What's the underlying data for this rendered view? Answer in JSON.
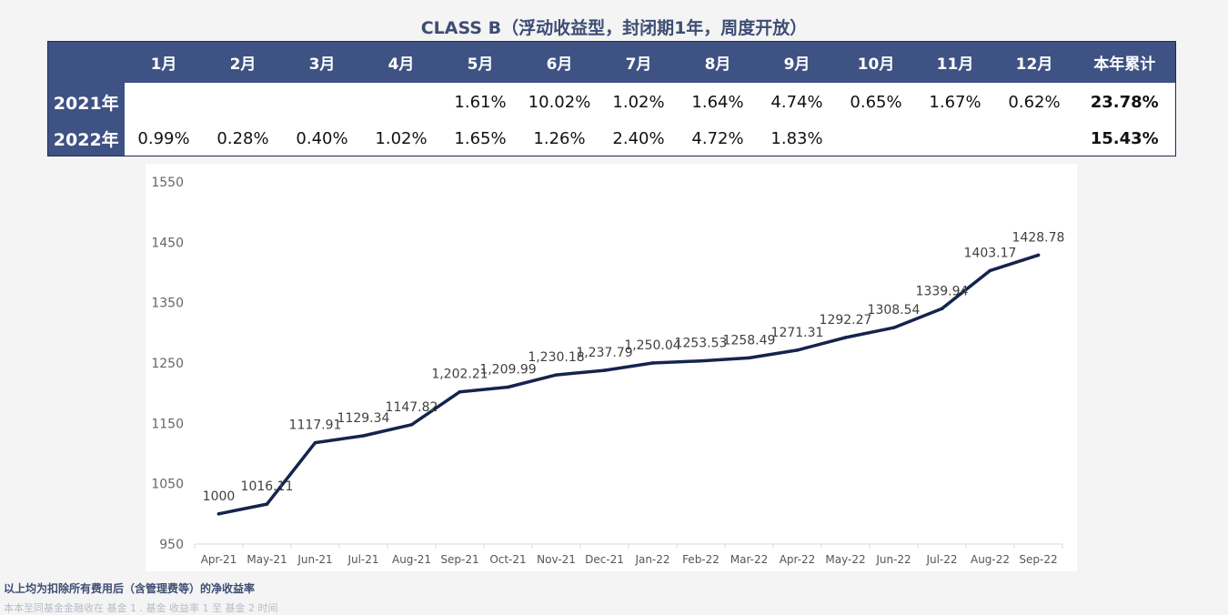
{
  "title": "CLASS B（浮动收益型，封闭期1年，周度开放）",
  "table": {
    "headers": [
      "",
      "1月",
      "2月",
      "3月",
      "4月",
      "5月",
      "6月",
      "7月",
      "8月",
      "9月",
      "10月",
      "11月",
      "12月",
      "本年累计"
    ],
    "rows": [
      {
        "label": "2021年",
        "values": [
          "",
          "",
          "",
          "",
          "1.61%",
          "10.02%",
          "1.02%",
          "1.64%",
          "4.74%",
          "0.65%",
          "1.67%",
          "0.62%"
        ],
        "total": "23.78%"
      },
      {
        "label": "2022年",
        "values": [
          "0.99%",
          "0.28%",
          "0.40%",
          "1.02%",
          "1.65%",
          "1.26%",
          "2.40%",
          "4.72%",
          "1.83%",
          "",
          "",
          ""
        ],
        "total": "15.43%"
      }
    ]
  },
  "chart_data": {
    "type": "line",
    "title": "",
    "xlabel": "",
    "ylabel": "",
    "ylim": [
      950,
      1550
    ],
    "yticks": [
      950,
      1050,
      1150,
      1250,
      1350,
      1450,
      1550
    ],
    "grid": false,
    "categories": [
      "Apr-21",
      "May-21",
      "Jun-21",
      "Jul-21",
      "Aug-21",
      "Sep-21",
      "Oct-21",
      "Nov-21",
      "Dec-21",
      "Jan-22",
      "Feb-22",
      "Mar-22",
      "Apr-22",
      "May-22",
      "Jun-22",
      "Jul-22",
      "Aug-22",
      "Sep-22"
    ],
    "series": [
      {
        "color": "#14244d",
        "values": [
          1000,
          1016.11,
          1117.91,
          1129.34,
          1147.82,
          1202.21,
          1209.99,
          1230.18,
          1237.79,
          1250.04,
          1253.53,
          1258.49,
          1271.31,
          1292.27,
          1308.54,
          1339.94,
          1403.17,
          1428.78
        ],
        "labels": [
          "1000",
          "1016.11",
          "1117.91",
          "1129.34",
          "1147.82",
          "1,202.21",
          "1,209.99",
          "1,230.18",
          "1,237.79",
          "1,250.04",
          "1253.53",
          "1258.49",
          "1271.31",
          "1292.27",
          "1308.54",
          "1339.94",
          "1403.17",
          "1428.78"
        ]
      }
    ]
  },
  "footer": {
    "note": "以上均为扣除所有费用后（含管理费等）的净收益率",
    "faded_line": "本本至同基金金融收在 基金 1 . 基金 收益率 1 至 基金 2 时间 "
  }
}
